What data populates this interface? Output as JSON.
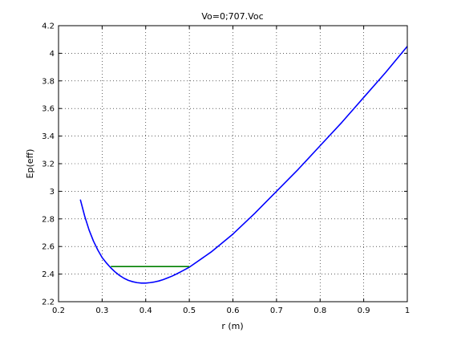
{
  "chart_data": {
    "type": "line",
    "title": "Vo=0;707.Voc",
    "xlabel": "r (m)",
    "ylabel": "Ep(eff)",
    "xlim": [
      0.2,
      1.0
    ],
    "ylim": [
      2.2,
      4.2
    ],
    "x_ticks": [
      "0.2",
      "0.3",
      "0.4",
      "0.5",
      "0.6",
      "0.7",
      "0.8",
      "0.9",
      "1"
    ],
    "y_ticks": [
      "2.2",
      "2.4",
      "2.6",
      "2.8",
      "3",
      "3.2",
      "3.4",
      "3.6",
      "3.8",
      "4",
      "4.2"
    ],
    "grid": true,
    "series": [
      {
        "color": "#0000ff",
        "style": "solid",
        "points": [
          [
            0.25,
            2.94
          ],
          [
            0.26,
            2.82
          ],
          [
            0.27,
            2.72
          ],
          [
            0.28,
            2.64
          ],
          [
            0.29,
            2.575
          ],
          [
            0.3,
            2.52
          ],
          [
            0.31,
            2.48
          ],
          [
            0.32,
            2.445
          ],
          [
            0.33,
            2.415
          ],
          [
            0.34,
            2.39
          ],
          [
            0.35,
            2.37
          ],
          [
            0.36,
            2.355
          ],
          [
            0.37,
            2.345
          ],
          [
            0.38,
            2.338
          ],
          [
            0.39,
            2.335
          ],
          [
            0.4,
            2.335
          ],
          [
            0.41,
            2.338
          ],
          [
            0.42,
            2.343
          ],
          [
            0.43,
            2.35
          ],
          [
            0.44,
            2.36
          ],
          [
            0.45,
            2.372
          ],
          [
            0.46,
            2.385
          ],
          [
            0.47,
            2.4
          ],
          [
            0.48,
            2.416
          ],
          [
            0.49,
            2.433
          ],
          [
            0.5,
            2.45
          ],
          [
            0.55,
            2.56
          ],
          [
            0.6,
            2.69
          ],
          [
            0.65,
            2.84
          ],
          [
            0.7,
            3.0
          ],
          [
            0.75,
            3.16
          ],
          [
            0.8,
            3.33
          ],
          [
            0.85,
            3.5
          ],
          [
            0.9,
            3.68
          ],
          [
            0.95,
            3.86
          ],
          [
            1.0,
            4.05
          ]
        ]
      },
      {
        "color": "#008000",
        "style": "solid",
        "points": [
          [
            0.32,
            2.455
          ],
          [
            0.5,
            2.455
          ]
        ]
      }
    ]
  }
}
